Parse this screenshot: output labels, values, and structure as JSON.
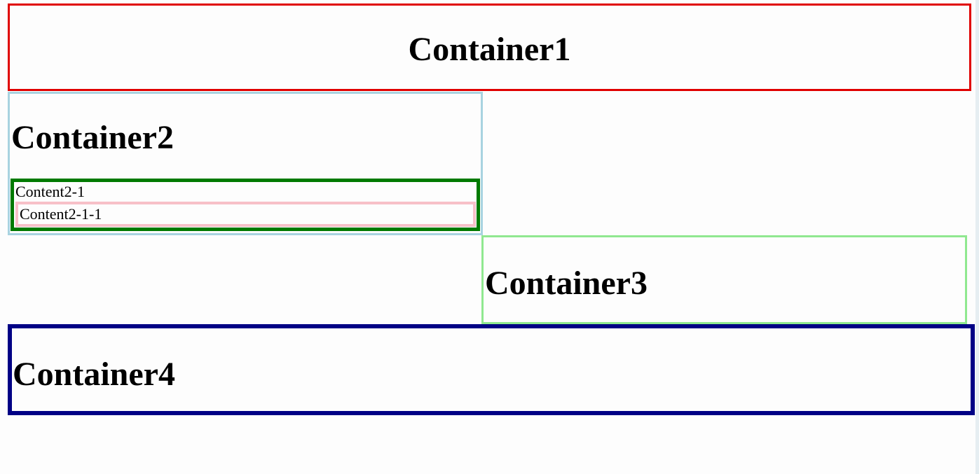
{
  "containers": {
    "container1": {
      "title": "Container1",
      "border_color": "#e00000"
    },
    "container2": {
      "title": "Container2",
      "border_color": "#a8d3e0",
      "content2_1": {
        "label": "Content2-1",
        "border_color": "#007a00",
        "content2_1_1": {
          "label": "Content2-1-1",
          "border_color": "#f7c0c8"
        }
      }
    },
    "container3": {
      "title": "Container3",
      "border_color": "#90e890"
    },
    "container4": {
      "title": "Container4",
      "border_color": "#000085"
    }
  }
}
